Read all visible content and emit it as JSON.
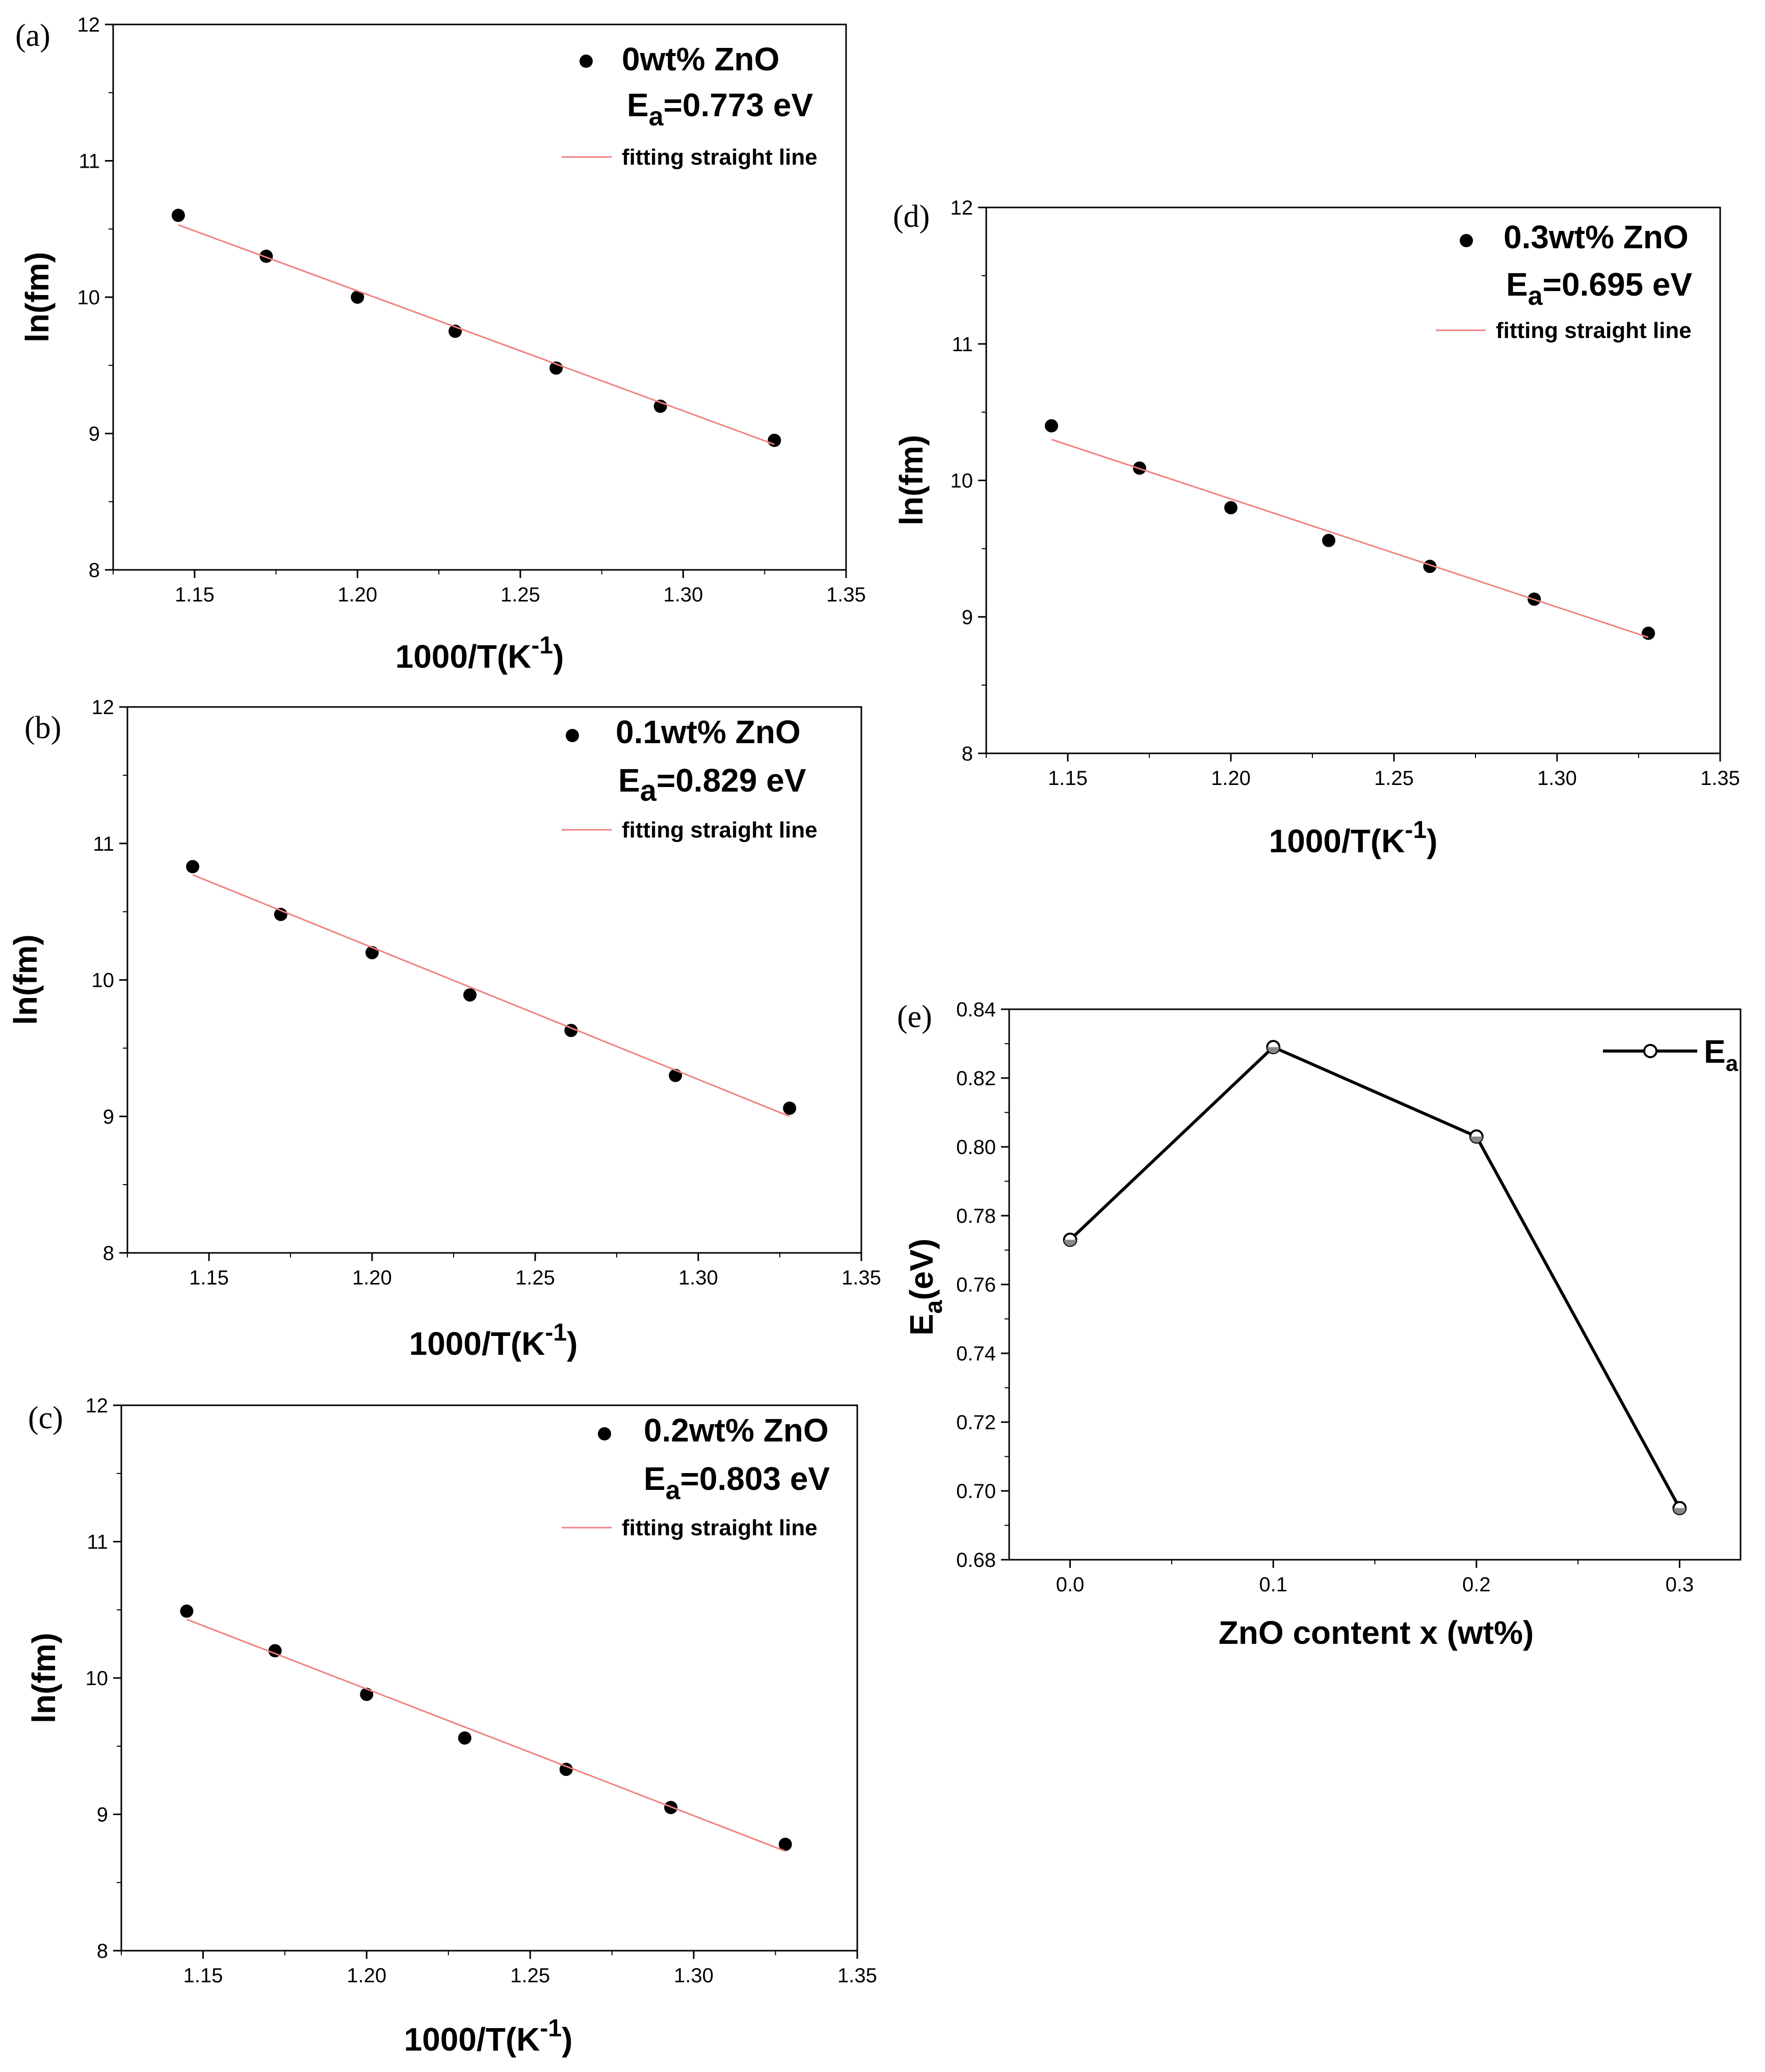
{
  "chart_data": [
    {
      "id": "a",
      "panel_label": "(a)",
      "type": "scatter",
      "title": "",
      "xlabel_main": "1000/T(K",
      "xlabel_sup": "-1",
      "xlabel_close": ")",
      "ylabel": "ln(fm)",
      "xlim": [
        1.125,
        1.35
      ],
      "ylim": [
        8,
        12
      ],
      "xticks": [
        1.15,
        1.2,
        1.25,
        1.3,
        1.35
      ],
      "xtick_labels": [
        "1.15",
        "1.20",
        "1.25",
        "1.30",
        "1.35"
      ],
      "yticks": [
        8,
        9,
        10,
        11,
        12
      ],
      "ytick_labels": [
        "8",
        "9",
        "10",
        "11",
        "12"
      ],
      "legend_location": "top-right",
      "series": [
        {
          "name": "0wt% ZnO",
          "kind": "scatter",
          "color": "#000000",
          "x": [
            1.145,
            1.172,
            1.2,
            1.23,
            1.261,
            1.293,
            1.328
          ],
          "y": [
            10.6,
            10.3,
            10.0,
            9.75,
            9.48,
            9.2,
            8.95
          ]
        },
        {
          "name": "fitting straight line",
          "kind": "line",
          "color": "#f08080",
          "x": [
            1.145,
            1.328
          ],
          "y": [
            10.53,
            8.92
          ]
        }
      ],
      "annotation": {
        "prefix": "E",
        "sub": "a",
        "value": "=0.773 eV"
      }
    },
    {
      "id": "b",
      "panel_label": "(b)",
      "type": "scatter",
      "title": "",
      "xlabel_main": "1000/T(K",
      "xlabel_sup": "-1",
      "xlabel_close": ")",
      "ylabel": "ln(fm)",
      "xlim": [
        1.125,
        1.35
      ],
      "ylim": [
        8,
        12
      ],
      "xticks": [
        1.15,
        1.2,
        1.25,
        1.3,
        1.35
      ],
      "xtick_labels": [
        "1.15",
        "1.20",
        "1.25",
        "1.30",
        "1.35"
      ],
      "yticks": [
        8,
        9,
        10,
        11,
        12
      ],
      "ytick_labels": [
        "8",
        "9",
        "10",
        "11",
        "12"
      ],
      "legend_location": "top-right",
      "series": [
        {
          "name": "0.1wt% ZnO",
          "kind": "scatter",
          "color": "#000000",
          "x": [
            1.145,
            1.172,
            1.2,
            1.23,
            1.261,
            1.293,
            1.328
          ],
          "y": [
            10.83,
            10.48,
            10.2,
            9.89,
            9.63,
            9.3,
            9.06
          ]
        },
        {
          "name": "fitting straight line",
          "kind": "line",
          "color": "#f08080",
          "x": [
            1.145,
            1.328
          ],
          "y": [
            10.77,
            9.0
          ]
        }
      ],
      "annotation": {
        "prefix": "E",
        "sub": "a",
        "value": "=0.829 eV"
      }
    },
    {
      "id": "c",
      "panel_label": "(c)",
      "type": "scatter",
      "title": "",
      "xlabel_main": "1000/T(K",
      "xlabel_sup": "-1",
      "xlabel_close": ")",
      "ylabel": "ln(fm)",
      "xlim": [
        1.125,
        1.35
      ],
      "ylim": [
        8,
        12
      ],
      "xticks": [
        1.15,
        1.2,
        1.25,
        1.3,
        1.35
      ],
      "xtick_labels": [
        "1.15",
        "1.20",
        "1.25",
        "1.30",
        "1.35"
      ],
      "yticks": [
        8,
        9,
        10,
        11,
        12
      ],
      "ytick_labels": [
        "8",
        "9",
        "10",
        "11",
        "12"
      ],
      "legend_location": "top-right",
      "series": [
        {
          "name": "0.2wt% ZnO",
          "kind": "scatter",
          "color": "#000000",
          "x": [
            1.145,
            1.172,
            1.2,
            1.23,
            1.261,
            1.293,
            1.328
          ],
          "y": [
            10.49,
            10.2,
            9.88,
            9.56,
            9.33,
            9.05,
            8.78
          ]
        },
        {
          "name": "fitting straight line",
          "kind": "line",
          "color": "#f08080",
          "x": [
            1.145,
            1.328
          ],
          "y": [
            10.43,
            8.73
          ]
        }
      ],
      "annotation": {
        "prefix": "E",
        "sub": "a",
        "value": "=0.803 eV"
      }
    },
    {
      "id": "d",
      "panel_label": "(d)",
      "type": "scatter",
      "title": "",
      "xlabel_main": "1000/T(K",
      "xlabel_sup": "-1",
      "xlabel_close": ")",
      "ylabel": "ln(fm)",
      "xlim": [
        1.125,
        1.35
      ],
      "ylim": [
        8,
        12
      ],
      "xticks": [
        1.15,
        1.2,
        1.25,
        1.3,
        1.35
      ],
      "xtick_labels": [
        "1.15",
        "1.20",
        "1.25",
        "1.30",
        "1.35"
      ],
      "yticks": [
        8,
        9,
        10,
        11,
        12
      ],
      "ytick_labels": [
        "8",
        "9",
        "10",
        "11",
        "12"
      ],
      "legend_location": "top-right",
      "series": [
        {
          "name": "0.3wt% ZnO",
          "kind": "scatter",
          "color": "#000000",
          "x": [
            1.145,
            1.172,
            1.2,
            1.23,
            1.261,
            1.293,
            1.328
          ],
          "y": [
            10.4,
            10.09,
            9.8,
            9.56,
            9.37,
            9.13,
            8.88
          ]
        },
        {
          "name": "fitting straight line",
          "kind": "line",
          "color": "#f08080",
          "x": [
            1.145,
            1.328
          ],
          "y": [
            10.3,
            8.85
          ]
        }
      ],
      "annotation": {
        "prefix": "E",
        "sub": "a",
        "value": "=0.695 eV"
      }
    },
    {
      "id": "e",
      "panel_label": "(e)",
      "type": "line",
      "title": "",
      "xlabel_main": "ZnO content x (wt%)",
      "xlabel_sup": "",
      "xlabel_close": "",
      "ylabel_main": "E",
      "ylabel_sub": "a",
      "ylabel_rest": "(eV)",
      "xlim": [
        -0.03,
        0.33
      ],
      "ylim": [
        0.68,
        0.84
      ],
      "xticks": [
        0.0,
        0.1,
        0.2,
        0.3
      ],
      "xtick_labels": [
        "0.0",
        "0.1",
        "0.2",
        "0.3"
      ],
      "yticks": [
        0.68,
        0.7,
        0.72,
        0.74,
        0.76,
        0.78,
        0.8,
        0.82,
        0.84
      ],
      "ytick_labels": [
        "0.68",
        "0.70",
        "0.72",
        "0.74",
        "0.76",
        "0.78",
        "0.80",
        "0.82",
        "0.84"
      ],
      "legend_location": "top-right",
      "series": [
        {
          "name_main": "E",
          "name_sub": "a",
          "kind": "line-marker",
          "color": "#000000",
          "x": [
            0.0,
            0.1,
            0.2,
            0.3
          ],
          "y": [
            0.773,
            0.829,
            0.803,
            0.695
          ]
        }
      ]
    }
  ]
}
